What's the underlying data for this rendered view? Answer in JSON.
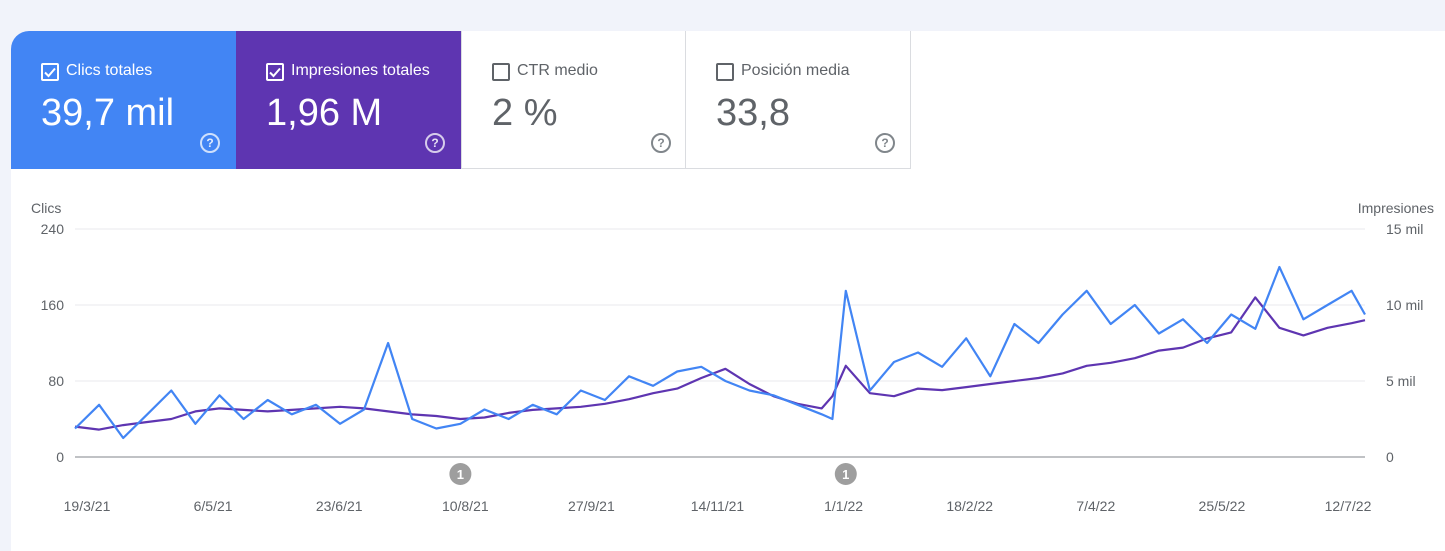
{
  "metrics": [
    {
      "label": "Clics totales",
      "value": "39,7 mil",
      "checked": true,
      "color": "#4285f4"
    },
    {
      "label": "Impresiones totales",
      "value": "1,96 M",
      "checked": true,
      "color": "#5e35b1"
    },
    {
      "label": "CTR medio",
      "value": "2 %",
      "checked": false,
      "color": "#ffffff"
    },
    {
      "label": "Posición media",
      "value": "33,8",
      "checked": false,
      "color": "#ffffff"
    }
  ],
  "help_glyph": "?",
  "chart_data": {
    "type": "line",
    "y_left": {
      "label": "Clics",
      "ticks": [
        "240",
        "160",
        "80",
        "0"
      ],
      "range": [
        0,
        240
      ]
    },
    "y_right": {
      "label": "Impresiones",
      "ticks": [
        "15 mil",
        "10 mil",
        "5 mil",
        "0"
      ],
      "range": [
        0,
        15000
      ]
    },
    "x_tick_labels": [
      "19/3/21",
      "6/5/21",
      "23/6/21",
      "10/8/21",
      "27/9/21",
      "14/11/21",
      "1/1/22",
      "18/2/22",
      "7/4/22",
      "25/5/22",
      "12/7/22"
    ],
    "annotations": [
      {
        "date": "2021-08-10",
        "text": "1"
      },
      {
        "date": "2022-01-01",
        "text": "1"
      }
    ],
    "grid": true,
    "series": [
      {
        "name": "Clics",
        "axis": "left",
        "color": "#4285f4",
        "x": [
          "2021-03-19",
          "2021-03-28",
          "2021-04-06",
          "2021-04-15",
          "2021-04-24",
          "2021-05-03",
          "2021-05-12",
          "2021-05-21",
          "2021-05-30",
          "2021-06-08",
          "2021-06-17",
          "2021-06-26",
          "2021-07-05",
          "2021-07-14",
          "2021-07-23",
          "2021-08-01",
          "2021-08-10",
          "2021-08-19",
          "2021-08-28",
          "2021-09-06",
          "2021-09-15",
          "2021-09-24",
          "2021-10-03",
          "2021-10-12",
          "2021-10-21",
          "2021-10-30",
          "2021-11-08",
          "2021-11-17",
          "2021-11-26",
          "2021-12-05",
          "2021-12-14",
          "2021-12-23",
          "2021-12-27",
          "2022-01-01",
          "2022-01-10",
          "2022-01-19",
          "2022-01-28",
          "2022-02-06",
          "2022-02-15",
          "2022-02-24",
          "2022-03-05",
          "2022-03-14",
          "2022-03-23",
          "2022-04-01",
          "2022-04-10",
          "2022-04-19",
          "2022-04-28",
          "2022-05-07",
          "2022-05-16",
          "2022-05-25",
          "2022-06-03",
          "2022-06-12",
          "2022-06-21",
          "2022-06-30",
          "2022-07-09",
          "2022-07-14"
        ],
        "values": [
          30,
          55,
          20,
          45,
          70,
          35,
          65,
          40,
          60,
          45,
          55,
          35,
          50,
          120,
          40,
          30,
          35,
          50,
          40,
          55,
          45,
          70,
          60,
          85,
          75,
          90,
          95,
          80,
          70,
          65,
          55,
          45,
          40,
          175,
          70,
          100,
          110,
          95,
          125,
          85,
          140,
          120,
          150,
          175,
          140,
          160,
          130,
          145,
          120,
          150,
          135,
          200,
          145,
          160,
          175,
          150
        ]
      },
      {
        "name": "Impresiones",
        "axis": "right",
        "color": "#5e35b1",
        "x": [
          "2021-03-19",
          "2021-03-28",
          "2021-04-06",
          "2021-04-15",
          "2021-04-24",
          "2021-05-03",
          "2021-05-12",
          "2021-05-21",
          "2021-05-30",
          "2021-06-08",
          "2021-06-17",
          "2021-06-26",
          "2021-07-05",
          "2021-07-14",
          "2021-07-23",
          "2021-08-01",
          "2021-08-10",
          "2021-08-19",
          "2021-08-28",
          "2021-09-06",
          "2021-09-15",
          "2021-09-24",
          "2021-10-03",
          "2021-10-12",
          "2021-10-21",
          "2021-10-30",
          "2021-11-08",
          "2021-11-17",
          "2021-11-26",
          "2021-12-05",
          "2021-12-14",
          "2021-12-23",
          "2021-12-27",
          "2022-01-01",
          "2022-01-10",
          "2022-01-19",
          "2022-01-28",
          "2022-02-06",
          "2022-02-15",
          "2022-02-24",
          "2022-03-05",
          "2022-03-14",
          "2022-03-23",
          "2022-04-01",
          "2022-04-10",
          "2022-04-19",
          "2022-04-28",
          "2022-05-07",
          "2022-05-16",
          "2022-05-25",
          "2022-06-03",
          "2022-06-12",
          "2022-06-21",
          "2022-06-30",
          "2022-07-09",
          "2022-07-14"
        ],
        "values": [
          2000,
          1800,
          2100,
          2300,
          2500,
          3000,
          3200,
          3100,
          3000,
          3100,
          3200,
          3300,
          3200,
          3000,
          2800,
          2700,
          2500,
          2600,
          2900,
          3100,
          3200,
          3300,
          3500,
          3800,
          4200,
          4500,
          5200,
          5800,
          4800,
          4000,
          3500,
          3200,
          4000,
          6000,
          4200,
          4000,
          4500,
          4400,
          4600,
          4800,
          5000,
          5200,
          5500,
          6000,
          6200,
          6500,
          7000,
          7200,
          7800,
          8200,
          10500,
          8500,
          8000,
          8500,
          8800,
          9000
        ]
      }
    ]
  }
}
